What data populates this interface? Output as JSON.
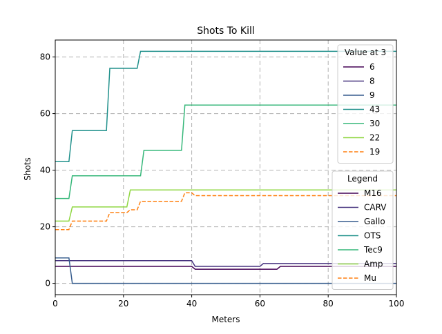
{
  "chart_data": {
    "type": "line",
    "title": "Shots To Kill",
    "xlabel": "Meters",
    "ylabel": "Shots",
    "xlim": [
      0,
      100
    ],
    "ylim": [
      -4,
      86
    ],
    "xticks": [
      0,
      20,
      40,
      60,
      80,
      100
    ],
    "yticks": [
      0,
      20,
      40,
      60,
      80
    ],
    "grid": true,
    "series": [
      {
        "name": "M16",
        "value_at_3": "6",
        "color": "#440154",
        "dash": false,
        "points": [
          [
            0,
            6
          ],
          [
            40,
            6
          ],
          [
            41,
            5
          ],
          [
            65,
            5
          ],
          [
            66,
            6
          ],
          [
            100,
            6
          ]
        ]
      },
      {
        "name": "CARV",
        "value_at_3": "8",
        "color": "#46327e",
        "dash": false,
        "points": [
          [
            0,
            8
          ],
          [
            40,
            8
          ],
          [
            41,
            6
          ],
          [
            60,
            6
          ],
          [
            61,
            7
          ],
          [
            100,
            7
          ]
        ]
      },
      {
        "name": "Gallo",
        "value_at_3": "9",
        "color": "#365c8d",
        "dash": false,
        "points": [
          [
            0,
            9
          ],
          [
            4,
            9
          ],
          [
            5,
            0
          ],
          [
            100,
            0
          ]
        ]
      },
      {
        "name": "OTS",
        "value_at_3": "43",
        "color": "#21918c",
        "dash": false,
        "points": [
          [
            0,
            43
          ],
          [
            4,
            43
          ],
          [
            5,
            54
          ],
          [
            15,
            54
          ],
          [
            16,
            76
          ],
          [
            24,
            76
          ],
          [
            25,
            82
          ],
          [
            100,
            82
          ]
        ]
      },
      {
        "name": "Tec9",
        "value_at_3": "30",
        "color": "#35b779",
        "dash": false,
        "points": [
          [
            0,
            30
          ],
          [
            4,
            30
          ],
          [
            5,
            38
          ],
          [
            25,
            38
          ],
          [
            26,
            47
          ],
          [
            37,
            47
          ],
          [
            38,
            63
          ],
          [
            100,
            63
          ]
        ]
      },
      {
        "name": "Amp",
        "value_at_3": "22",
        "color": "#90d743",
        "dash": false,
        "points": [
          [
            0,
            22
          ],
          [
            4,
            22
          ],
          [
            5,
            27
          ],
          [
            21,
            27
          ],
          [
            22,
            33
          ],
          [
            100,
            33
          ]
        ]
      },
      {
        "name": "Mu",
        "value_at_3": "19",
        "color": "#ff7f0e",
        "dash": true,
        "points": [
          [
            0,
            19
          ],
          [
            4,
            19
          ],
          [
            5,
            22
          ],
          [
            15,
            22
          ],
          [
            16,
            25
          ],
          [
            21,
            25
          ],
          [
            22,
            26
          ],
          [
            24,
            26
          ],
          [
            25,
            29
          ],
          [
            37,
            29
          ],
          [
            38,
            32
          ],
          [
            40,
            32
          ],
          [
            41,
            31
          ],
          [
            100,
            31
          ]
        ]
      }
    ],
    "legends": [
      {
        "title": "Value at 3",
        "placement": "upper-right",
        "field": "value_at_3"
      },
      {
        "title": "Legend",
        "placement": "lower-right",
        "field": "name"
      }
    ]
  }
}
